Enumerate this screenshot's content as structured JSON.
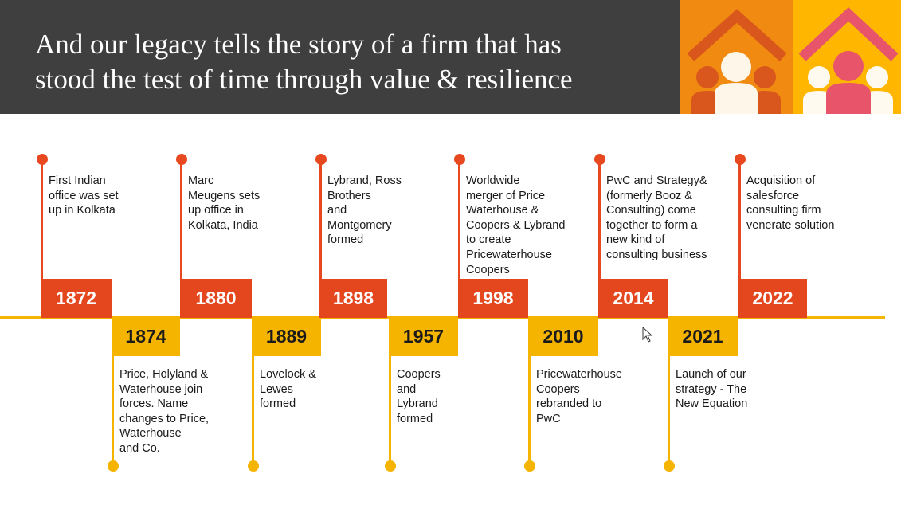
{
  "header": {
    "title_line1": "And our legacy tells the story of a firm that has",
    "title_line2": "stood the test of time through value & resilience"
  },
  "colors": {
    "top_accent": "#e4461e",
    "bottom_accent": "#f5b400",
    "header_bg": "#3f3f3f"
  },
  "timeline": [
    {
      "year": "1872",
      "position": "top",
      "text": "First Indian\noffice was set\nup in Kolkata"
    },
    {
      "year": "1874",
      "position": "bottom",
      "text": "Price, Holyland &\nWaterhouse join\nforces. Name\nchanges to Price,\nWaterhouse\nand Co."
    },
    {
      "year": "1880",
      "position": "top",
      "text": "Marc\nMeugens sets\nup office in\nKolkata, India"
    },
    {
      "year": "1889",
      "position": "bottom",
      "text": "Lovelock &\nLewes\nformed"
    },
    {
      "year": "1898",
      "position": "top",
      "text": "Lybrand, Ross\nBrothers\nand\nMontgomery\nformed"
    },
    {
      "year": "1957",
      "position": "bottom",
      "text": "Coopers\nand\nLybrand\nformed"
    },
    {
      "year": "1998",
      "position": "top",
      "text": "Worldwide\nmerger of Price\nWaterhouse &\nCoopers & Lybrand\nto create\nPricewaterhouse\nCoopers"
    },
    {
      "year": "2010",
      "position": "bottom",
      "text": "Pricewaterhouse\nCoopers\nrebranded to\nPwC"
    },
    {
      "year": "2014",
      "position": "top",
      "text": "PwC and Strategy&\n(formerly Booz &\nConsulting) come\ntogether to form a\nnew kind of\nconsulting business"
    },
    {
      "year": "2021",
      "position": "bottom",
      "text": "Launch of our\nstrategy -  The\nNew Equation"
    },
    {
      "year": "2022",
      "position": "top",
      "text": "Acquisition of\nsalesforce\nconsulting firm\nvenerate solution"
    }
  ]
}
